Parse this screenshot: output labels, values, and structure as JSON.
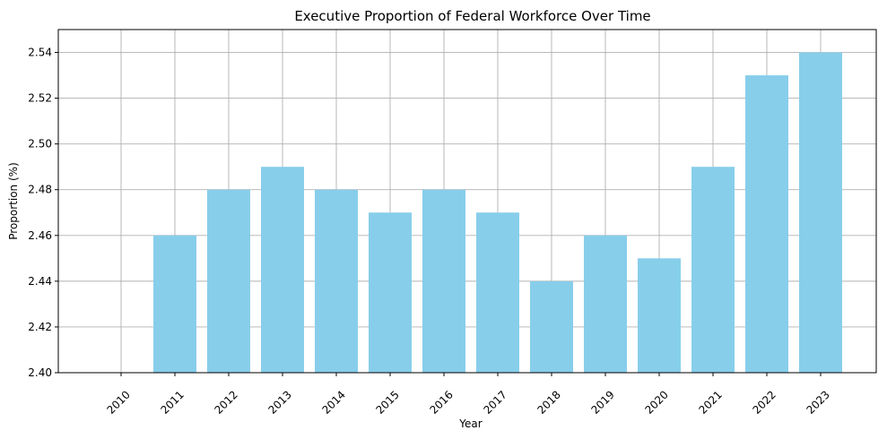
{
  "chart_data": {
    "type": "bar",
    "title": "Executive Proportion of Federal Workforce Over Time",
    "xlabel": "Year",
    "ylabel": "Proportion (%)",
    "categories": [
      "2010",
      "2011",
      "2012",
      "2013",
      "2014",
      "2015",
      "2016",
      "2017",
      "2018",
      "2019",
      "2020",
      "2021",
      "2022",
      "2023"
    ],
    "values": [
      2.4,
      2.46,
      2.48,
      2.49,
      2.48,
      2.47,
      2.48,
      2.47,
      2.44,
      2.46,
      2.45,
      2.49,
      2.53,
      2.54
    ],
    "ylim": [
      2.4,
      2.55
    ],
    "yticks": [
      "2.40",
      "2.42",
      "2.44",
      "2.46",
      "2.48",
      "2.50",
      "2.52",
      "2.54"
    ],
    "grid": true,
    "bar_color": "#87ceeb",
    "grid_color": "#b0b0b0"
  }
}
